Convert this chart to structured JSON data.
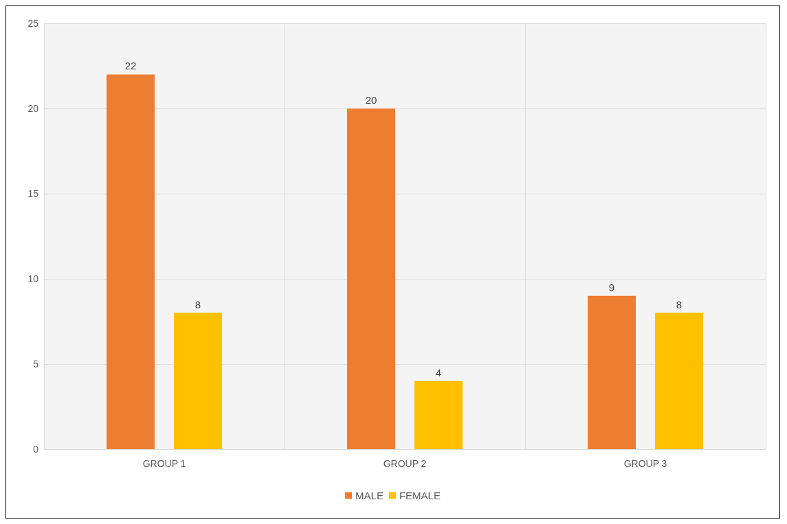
{
  "chart_data": {
    "type": "bar",
    "categories": [
      "GROUP 1",
      "GROUP 2",
      "GROUP 3"
    ],
    "series": [
      {
        "name": "MALE",
        "color": "#ed7d31",
        "values": [
          22,
          20,
          9
        ]
      },
      {
        "name": "FEMALE",
        "color": "#ffc000",
        "values": [
          8,
          4,
          8
        ]
      }
    ],
    "ylim": [
      0,
      25
    ],
    "yticks": [
      0,
      5,
      10,
      15,
      20,
      25
    ],
    "grid": true,
    "legend": "bottom",
    "data_labels": true
  }
}
